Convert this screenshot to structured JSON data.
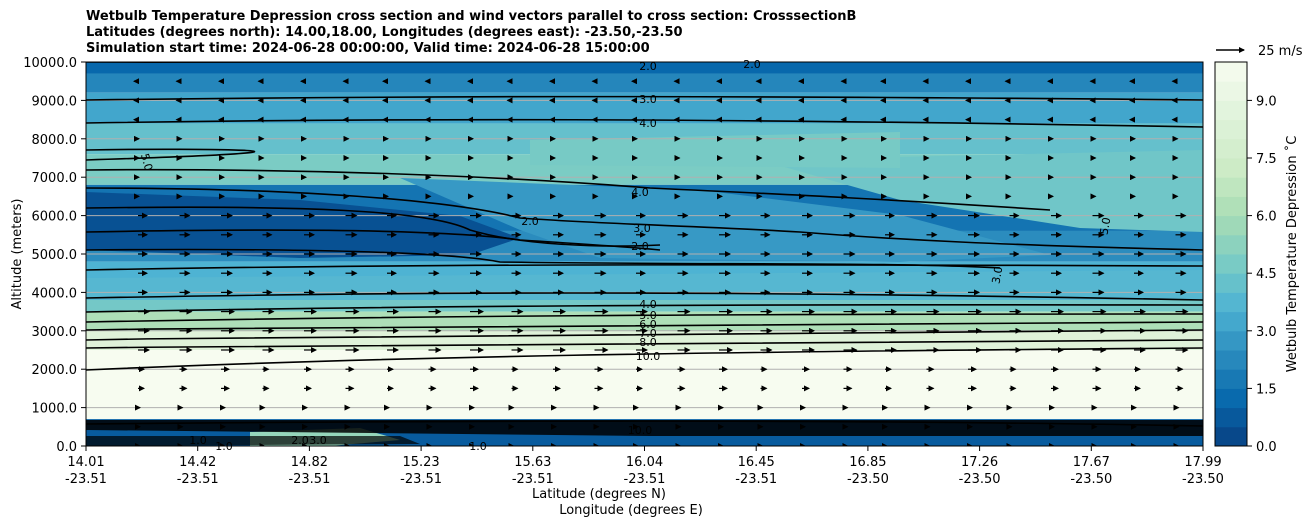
{
  "chart_data": {
    "type": "contour",
    "title_lines": [
      "Wetbulb Temperature Depression cross section and wind vectors parallel to cross section: CrosssectionB",
      "Latitudes (degrees north): 14.00,18.00, Longitudes (degrees east): -23.50,-23.50",
      "Simulation start time: 2024-06-28 00:00:00, Valid time: 2024-06-28 15:00:00"
    ],
    "ylabel": "Altitude (meters)",
    "xlabel_lat": "Latitude (degrees N)",
    "xlabel_lon": "Longitude (degrees E)",
    "ylim": [
      0,
      10000
    ],
    "yticks": [
      "0.0",
      "1000.0",
      "2000.0",
      "3000.0",
      "4000.0",
      "5000.0",
      "6000.0",
      "7000.0",
      "8000.0",
      "9000.0",
      "10000.0"
    ],
    "xticks_lat": [
      "14.01",
      "14.42",
      "14.82",
      "15.23",
      "15.63",
      "16.04",
      "16.45",
      "16.85",
      "17.26",
      "17.67",
      "17.99"
    ],
    "xticks_lon": [
      "-23.51",
      "-23.51",
      "-23.51",
      "-23.51",
      "-23.51",
      "-23.51",
      "-23.51",
      "-23.50",
      "-23.50",
      "-23.50",
      "-23.50"
    ],
    "colorbar": {
      "label": "Wetbulb Temperature Depression ˚C",
      "ticks": [
        "0.0",
        "1.5",
        "3.0",
        "4.5",
        "6.0",
        "7.5",
        "9.0"
      ],
      "range": [
        0,
        10
      ]
    },
    "quiver_key": "25 m/s",
    "contour_labels": [
      "2.0",
      "2.0",
      "3.0",
      "4.0",
      "5.0",
      "2.0",
      "4.0",
      "3.0",
      "2.0",
      "5.0",
      "3.0",
      "4.0",
      "5.0",
      "6.0",
      "7.0",
      "8.0",
      "10.0",
      "10.0",
      "1.0",
      "1.0",
      "2.0",
      "3.0",
      "1.0"
    ],
    "field_layers": [
      {
        "z_bottom": 9700,
        "z_top": 10000,
        "value": 1.2
      },
      {
        "z_bottom": 9200,
        "z_top": 9700,
        "value": 2.2
      },
      {
        "z_bottom": 8400,
        "z_top": 9200,
        "value": 3.2
      },
      {
        "z_bottom": 7600,
        "z_top": 8400,
        "value": 4.2
      },
      {
        "z_bottom": 6800,
        "z_top": 7600,
        "value": 4.8
      },
      {
        "z_bottom": 5600,
        "z_top": 6800,
        "value": 1.6
      },
      {
        "z_bottom": 4800,
        "z_top": 5600,
        "value": 2.4
      },
      {
        "z_bottom": 4000,
        "z_top": 4800,
        "value": 3.6
      },
      {
        "z_bottom": 3500,
        "z_top": 4000,
        "value": 4.6
      },
      {
        "z_bottom": 3000,
        "z_top": 3500,
        "value": 6.2
      },
      {
        "z_bottom": 2500,
        "z_top": 3000,
        "value": 8.5
      },
      {
        "z_bottom": 700,
        "z_top": 2500,
        "value": 10.0
      },
      {
        "z_bottom": 0,
        "z_top": 700,
        "value": 1.0
      }
    ]
  }
}
